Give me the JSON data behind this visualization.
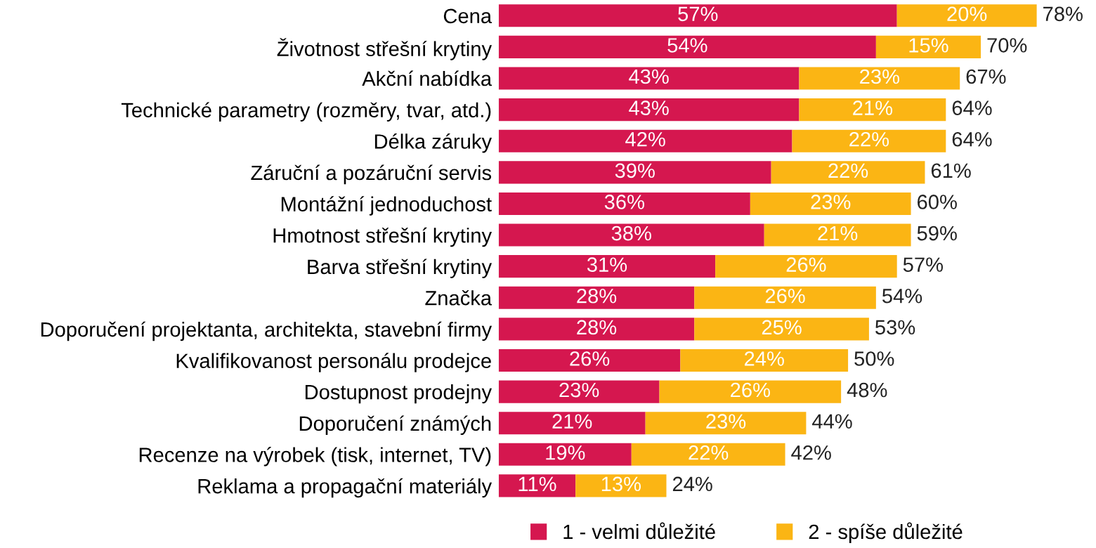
{
  "chart_data": {
    "type": "bar",
    "orientation": "horizontal",
    "stacked": true,
    "categories": [
      "Cena",
      "Životnost střešní krytiny",
      "Akční nabídka",
      "Technické parametry (rozměry, tvar, atd.)",
      "Délka záruky",
      "Záruční a pozáruční servis",
      "Montážní jednoduchost",
      "Hmotnost střešní krytiny",
      "Barva střešní krytiny",
      "Značka",
      "Doporučení projektanta, architekta, stavební firmy",
      "Kvalifikovanost personálu prodejce",
      "Dostupnost prodejny",
      "Doporučení známých",
      "Recenze na výrobek (tisk, internet, TV)",
      "Reklama a propagační materiály"
    ],
    "series": [
      {
        "name": "1 - velmi důležité",
        "color": "#d5174f",
        "values": [
          57,
          54,
          43,
          43,
          42,
          39,
          36,
          38,
          31,
          28,
          28,
          26,
          23,
          21,
          19,
          11
        ],
        "value_labels": [
          "57%",
          "54%",
          "43%",
          "43%",
          "42%",
          "39%",
          "36%",
          "38%",
          "31%",
          "28%",
          "28%",
          "26%",
          "23%",
          "21%",
          "19%",
          "11%"
        ]
      },
      {
        "name": "2 - spíše důležité",
        "color": "#fbb514",
        "values": [
          20,
          15,
          23,
          21,
          22,
          22,
          23,
          21,
          26,
          26,
          25,
          24,
          26,
          23,
          22,
          13
        ],
        "value_labels": [
          "20%",
          "15%",
          "23%",
          "21%",
          "22%",
          "22%",
          "23%",
          "21%",
          "26%",
          "26%",
          "25%",
          "24%",
          "26%",
          "23%",
          "22%",
          "13%"
        ]
      }
    ],
    "totals": [
      "78%",
      "70%",
      "67%",
      "64%",
      "64%",
      "61%",
      "60%",
      "59%",
      "57%",
      "54%",
      "53%",
      "50%",
      "48%",
      "44%",
      "42%",
      "24%"
    ],
    "tick_labels": "y",
    "grid": false,
    "legend": "bottom"
  }
}
